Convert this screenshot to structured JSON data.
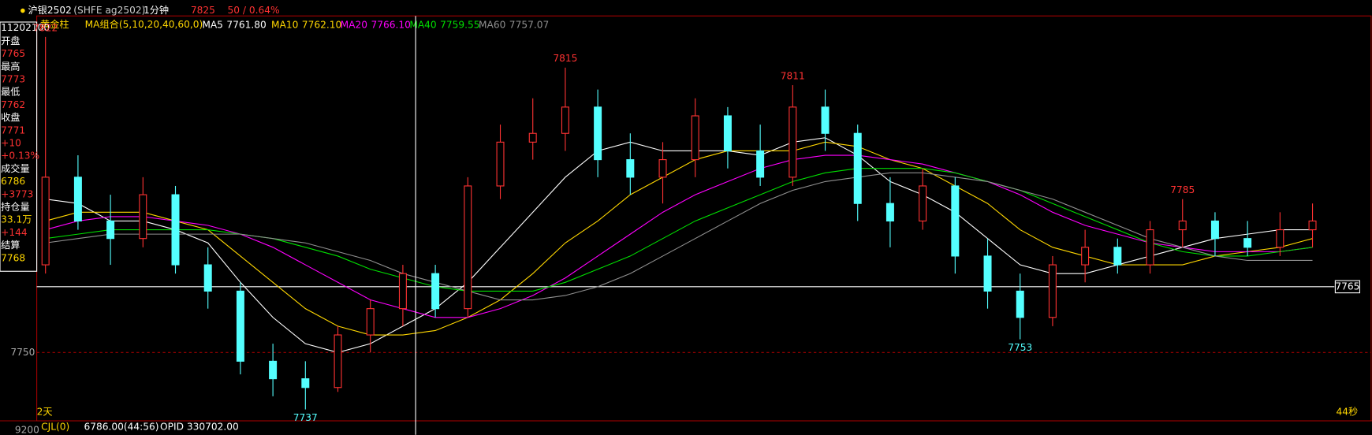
{
  "toolbar": {
    "symbol": "沪银2502",
    "code": "(SHFE ag2502)",
    "period": "1分钟",
    "price": "7825",
    "change": "50 / 0.64%"
  },
  "info_panel": {
    "time": "11202100",
    "items": [
      [
        "开盘",
        "7765"
      ],
      [
        "最高",
        "7773"
      ],
      [
        "最低",
        "7762"
      ],
      [
        "收盘",
        "7771",
        "+10",
        "+0.13%"
      ],
      [
        "成交量",
        "6786",
        "+3773"
      ],
      [
        "持仓量",
        "33.1万",
        "+144"
      ],
      [
        "结算",
        "7768"
      ]
    ]
  },
  "indicator_bar": {
    "style": "黄金柱",
    "group": "MA组合(5,10,20,40,60,0)"
  },
  "footer": {
    "left": "2天",
    "right": "44秒",
    "volume_name": "CJL(0)",
    "volume": "6786.00(44:56)",
    "open_interest": "OPID 330702.00",
    "volume_ytick": "9200"
  },
  "chart_data": {
    "type": "candlestick",
    "ylim": [
      7734.4,
      7826.8
    ],
    "yticks": [
      7750
    ],
    "grid": true,
    "price_line": 7765,
    "up_color": "#ff3232",
    "down_color": "#54ffff",
    "open": [
      7770,
      7790,
      7780,
      7776,
      7786,
      7770,
      7764,
      7748,
      7744,
      7742,
      7754,
      7760,
      7768,
      7760,
      7788,
      7798,
      7800,
      7806,
      7794,
      7790,
      7794,
      7804,
      7796,
      7790,
      7806,
      7800,
      7784,
      7780,
      7788,
      7772,
      7764,
      7758,
      7770,
      7774,
      7770,
      7778,
      7780,
      7776,
      7774,
      7778
    ],
    "high": [
      7822,
      7795,
      7786,
      7790,
      7788,
      7774,
      7766,
      7752,
      7748,
      7756,
      7762,
      7770,
      7770,
      7790,
      7802,
      7808,
      7815,
      7810,
      7800,
      7798,
      7808,
      7806,
      7802,
      7811,
      7810,
      7802,
      7790,
      7792,
      7790,
      7776,
      7768,
      7772,
      7778,
      7776,
      7780,
      7785,
      7782,
      7780,
      7782,
      7784
    ],
    "low": [
      7768,
      7778,
      7770,
      7774,
      7768,
      7760,
      7745,
      7740,
      7737,
      7741,
      7750,
      7756,
      7758,
      7758,
      7785,
      7794,
      7796,
      7790,
      7786,
      7784,
      7790,
      7792,
      7788,
      7788,
      7796,
      7780,
      7774,
      7778,
      7768,
      7760,
      7753,
      7756,
      7766,
      7768,
      7768,
      7774,
      7772,
      7772,
      7772,
      7774
    ],
    "close": [
      7790,
      7780,
      7776,
      7786,
      7770,
      7764,
      7748,
      7744,
      7742,
      7754,
      7760,
      7768,
      7760,
      7788,
      7798,
      7800,
      7806,
      7794,
      7790,
      7794,
      7804,
      7796,
      7790,
      7806,
      7800,
      7784,
      7780,
      7788,
      7772,
      7764,
      7758,
      7770,
      7774,
      7770,
      7778,
      7780,
      7776,
      7774,
      7778,
      7780
    ],
    "series": [
      {
        "name": "MA5",
        "value_label": "7761.80",
        "color": "#ffffff",
        "values": [
          7785,
          7784,
          7780,
          7780,
          7778,
          7775,
          7766,
          7758,
          7752,
          7750,
          7752,
          7756,
          7760,
          7766,
          7774,
          7782,
          7790,
          7796,
          7798,
          7796,
          7796,
          7796,
          7795,
          7798,
          7799,
          7795,
          7789,
          7786,
          7782,
          7776,
          7770,
          7768,
          7768,
          7770,
          7772,
          7774,
          7776,
          7777,
          7778,
          7778
        ]
      },
      {
        "name": "MA10",
        "value_label": "7762.10",
        "color": "#ffd700",
        "values": [
          7780,
          7782,
          7782,
          7782,
          7780,
          7778,
          7772,
          7766,
          7760,
          7756,
          7754,
          7754,
          7755,
          7758,
          7762,
          7768,
          7775,
          7780,
          7786,
          7790,
          7794,
          7796,
          7796,
          7796,
          7798,
          7797,
          7794,
          7792,
          7788,
          7784,
          7778,
          7774,
          7772,
          7770,
          7770,
          7770,
          7772,
          7773,
          7774,
          7776
        ]
      },
      {
        "name": "MA20",
        "value_label": "7766.10",
        "color": "#ff00ff",
        "values": [
          7778,
          7780,
          7781,
          7781,
          7780,
          7779,
          7777,
          7774,
          7770,
          7766,
          7762,
          7760,
          7758,
          7758,
          7760,
          7763,
          7767,
          7772,
          7777,
          7782,
          7786,
          7789,
          7792,
          7794,
          7795,
          7795,
          7794,
          7793,
          7791,
          7789,
          7786,
          7782,
          7779,
          7777,
          7775,
          7774,
          7773,
          7773,
          7773,
          7774
        ]
      },
      {
        "name": "MA40",
        "value_label": "7759.55",
        "color": "#00e000",
        "values": [
          7776,
          7777,
          7778,
          7778,
          7778,
          7778,
          7777,
          7776,
          7774,
          7772,
          7769,
          7767,
          7765,
          7764,
          7764,
          7764,
          7766,
          7769,
          7772,
          7776,
          7780,
          7783,
          7786,
          7789,
          7791,
          7792,
          7792,
          7792,
          7791,
          7789,
          7787,
          7784,
          7781,
          7778,
          7775,
          7773,
          7772,
          7772,
          7773,
          7774
        ]
      },
      {
        "name": "MA60",
        "value_label": "7757.07",
        "color": "#909090",
        "values": [
          7775,
          7776,
          7777,
          7777,
          7777,
          7777,
          7777,
          7776,
          7775,
          7773,
          7771,
          7768,
          7766,
          7764,
          7762,
          7762,
          7763,
          7765,
          7768,
          7772,
          7776,
          7780,
          7784,
          7787,
          7789,
          7790,
          7791,
          7791,
          7790,
          7789,
          7787,
          7785,
          7782,
          7779,
          7776,
          7774,
          7772,
          7771,
          7771,
          7771
        ]
      }
    ]
  }
}
